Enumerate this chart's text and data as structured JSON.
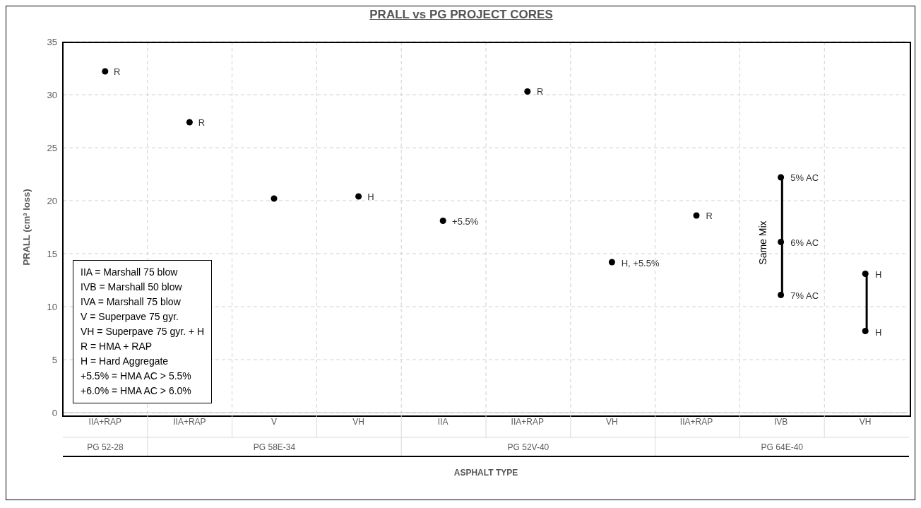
{
  "chart_data": {
    "type": "scatter",
    "title": "PRALL vs PG PROJECT CORES",
    "xlabel": "ASPHALT TYPE",
    "ylabel": "PRALL (cm³ loss)",
    "categories": [
      "IIA+RAP",
      "IIA+RAP",
      "V",
      "VH",
      "IIA",
      "IIA+RAP",
      "VH",
      "IIA+RAP",
      "IVB",
      "VH"
    ],
    "series": [
      {
        "color": "#000000",
        "values": [
          32.2,
          27.4,
          20.2,
          20.4,
          18.1,
          30.3,
          14.2,
          18.6,
          22.2,
          13.1
        ]
      },
      {
        "color": "#000000",
        "values": [
          null,
          null,
          null,
          null,
          null,
          null,
          null,
          null,
          16.1,
          7.7
        ]
      },
      {
        "color": "#000000",
        "values": [
          null,
          null,
          null,
          null,
          null,
          null,
          null,
          null,
          11.1,
          null
        ]
      }
    ],
    "ylim": [
      0,
      35
    ],
    "yticks": [
      0,
      5,
      10,
      15,
      20,
      25,
      30,
      35
    ],
    "grid": true,
    "marker": "circle",
    "legend": false,
    "annotations": [
      "IIA = Marshall 75 blow",
      "IVB = Marshall 50 blow",
      "IVA = Marshall 75 blow",
      "V = Superpave 75 gyr.",
      "VH = Superpave 75 gyr. + H",
      "R = HMA + RAP",
      "H = Hard Aggregate",
      "+5.5% = HMA AC > 5.5%",
      "+6.0% = HMA AC > 6.0%",
      "PG 52-28",
      "PG 58E-34",
      "PG 52V-40",
      "PG 64E-40",
      "R",
      "R",
      "H, +5.5%",
      "R",
      "H",
      "H",
      {
        "text": "R",
        "x": "IIA+RAP",
        "y": 32.2
      },
      {
        "text": "H",
        "x": "VH",
        "y": 20.4
      },
      {
        "text": "+5.5%",
        "x": "IIA",
        "y": 18.1
      },
      {
        "text": "5% AC",
        "x": "IVB",
        "y": 22.2
      },
      {
        "text": "6% AC",
        "x": "IVB",
        "y": 16.1
      },
      {
        "text": "7% AC",
        "x": "IVB",
        "y": 11.1
      },
      {
        "text": "Same Mix",
        "x": "IVB",
        "y": 16.1
      }
    ]
  }
}
